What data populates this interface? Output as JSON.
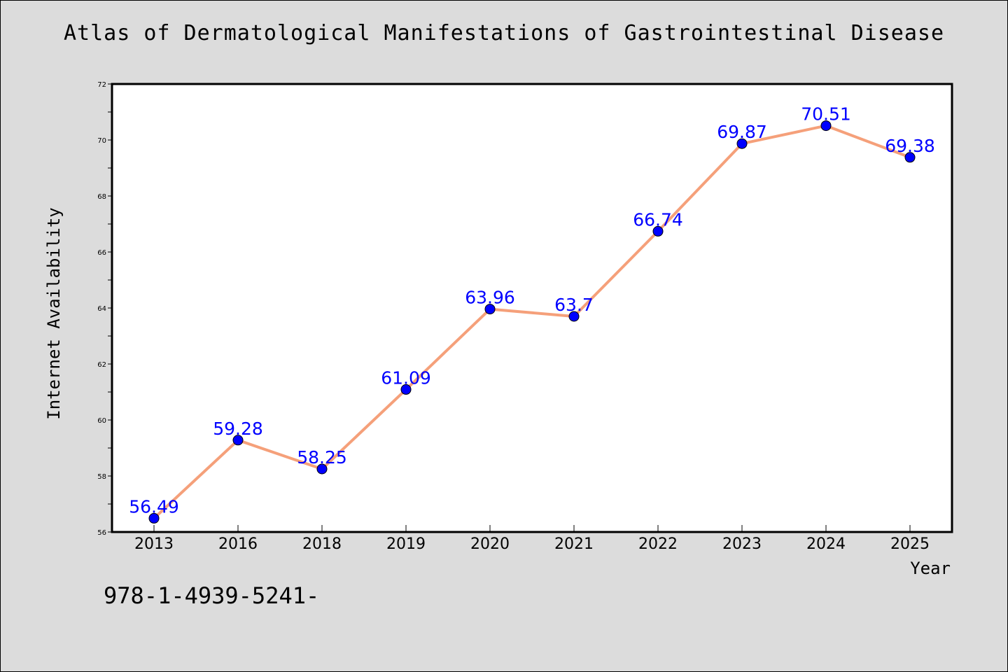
{
  "colors": {
    "background": "#dcdcdc",
    "plot_background": "#ffffff",
    "line": "#f5a07a",
    "marker": "#0000ff",
    "data_label": "#0000ff"
  },
  "chart_data": {
    "type": "line",
    "title": "Atlas of Dermatological Manifestations of Gastrointestinal Disease",
    "xlabel": "Year",
    "ylabel": "Internet Availability",
    "categories": [
      "2013",
      "2016",
      "2018",
      "2019",
      "2020",
      "2021",
      "2022",
      "2023",
      "2024",
      "2025"
    ],
    "series": [
      {
        "values": [
          56.49,
          59.28,
          58.25,
          61.09,
          63.96,
          63.7,
          66.74,
          69.87,
          70.51,
          69.38
        ],
        "labels": [
          "56.49",
          "59.28",
          "58.25",
          "61.09",
          "63.96",
          "63.7",
          "66.74",
          "69.87",
          "70.51",
          "69.38"
        ]
      }
    ],
    "ylim": [
      56,
      72
    ],
    "y_ticks": [
      "56",
      "58",
      "60",
      "62",
      "64",
      "66",
      "68",
      "70",
      "72"
    ],
    "grid": false,
    "legend": "none"
  },
  "footer_text": "978-1-4939-5241-"
}
